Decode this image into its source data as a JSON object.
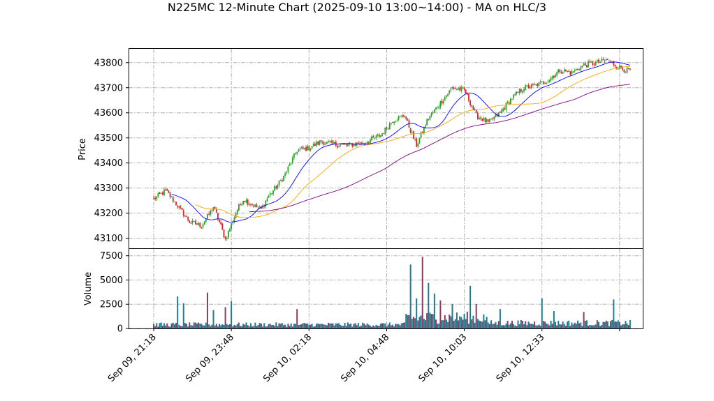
{
  "chart_data": {
    "type": "candlestick",
    "title": "N225MC 12-Minute Chart (2025-09-10 13:00~14:00) - MA on HLC/3",
    "price_panel": {
      "ylabel": "Price",
      "ylim": [
        43060,
        43855
      ],
      "yticks": [
        43100,
        43200,
        43300,
        43400,
        43500,
        43600,
        43700,
        43800
      ],
      "grid": true
    },
    "volume_panel": {
      "ylabel": "Volume",
      "ylim": [
        0,
        8200
      ],
      "yticks": [
        0,
        2500,
        5000,
        7500
      ],
      "grid": true
    },
    "xticks": [
      {
        "i": 0,
        "label": "Sep 09, 21:18"
      },
      {
        "i": 13,
        "label": "Sep 09, 23:48"
      },
      {
        "i": 26,
        "label": "Sep 10, 02:18"
      },
      {
        "i": 39,
        "label": "Sep 10, 04:48"
      },
      {
        "i": 52,
        "label": "Sep 10, 10:03"
      },
      {
        "i": 65,
        "label": "Sep 10, 12:33"
      }
    ],
    "n_slots": 80,
    "colors": {
      "up": "#2ca02c",
      "down": "#d62728",
      "ma_short": "#0000ff",
      "ma_mid": "#ffa500",
      "ma_long": "#800080",
      "vol_a": "#1f7a8c",
      "vol_b": "#8b3a62"
    },
    "anchors": [
      [
        0,
        43255
      ],
      [
        2,
        43290
      ],
      [
        4,
        43230
      ],
      [
        6,
        43165
      ],
      [
        8,
        43150
      ],
      [
        9,
        43185
      ],
      [
        10,
        43225
      ],
      [
        11,
        43165
      ],
      [
        12,
        43095
      ],
      [
        14,
        43215
      ],
      [
        15,
        43255
      ],
      [
        18,
        43215
      ],
      [
        19,
        43260
      ],
      [
        21,
        43320
      ],
      [
        22,
        43355
      ],
      [
        24,
        43450
      ],
      [
        26,
        43460
      ],
      [
        28,
        43485
      ],
      [
        30,
        43475
      ],
      [
        32,
        43470
      ],
      [
        35,
        43480
      ],
      [
        38,
        43510
      ],
      [
        40,
        43570
      ],
      [
        42,
        43590
      ],
      [
        44,
        43470
      ],
      [
        46,
        43580
      ],
      [
        48,
        43640
      ],
      [
        50,
        43700
      ],
      [
        52,
        43690
      ],
      [
        53,
        43640
      ],
      [
        54,
        43590
      ],
      [
        56,
        43560
      ],
      [
        58,
        43600
      ],
      [
        60,
        43660
      ],
      [
        62,
        43700
      ],
      [
        64,
        43710
      ],
      [
        66,
        43730
      ],
      [
        68,
        43770
      ],
      [
        70,
        43760
      ],
      [
        72,
        43790
      ],
      [
        74,
        43800
      ],
      [
        76,
        43810
      ],
      [
        78,
        43780
      ],
      [
        79,
        43770
      ]
    ],
    "volume_spikes": [
      {
        "i": 4,
        "v": 3300
      },
      {
        "i": 5,
        "v": 2600
      },
      {
        "i": 9,
        "v": 3700
      },
      {
        "i": 10,
        "v": 1900
      },
      {
        "i": 12,
        "v": 2200
      },
      {
        "i": 13,
        "v": 2800
      },
      {
        "i": 24,
        "v": 2000
      },
      {
        "i": 43,
        "v": 6600
      },
      {
        "i": 44,
        "v": 3100
      },
      {
        "i": 45,
        "v": 7400
      },
      {
        "i": 46,
        "v": 4700
      },
      {
        "i": 47,
        "v": 3600
      },
      {
        "i": 48,
        "v": 2900
      },
      {
        "i": 50,
        "v": 2500
      },
      {
        "i": 53,
        "v": 4400
      },
      {
        "i": 54,
        "v": 2500
      },
      {
        "i": 58,
        "v": 2000
      },
      {
        "i": 65,
        "v": 3100
      },
      {
        "i": 67,
        "v": 1800
      },
      {
        "i": 72,
        "v": 1700
      },
      {
        "i": 77,
        "v": 3000
      }
    ]
  }
}
